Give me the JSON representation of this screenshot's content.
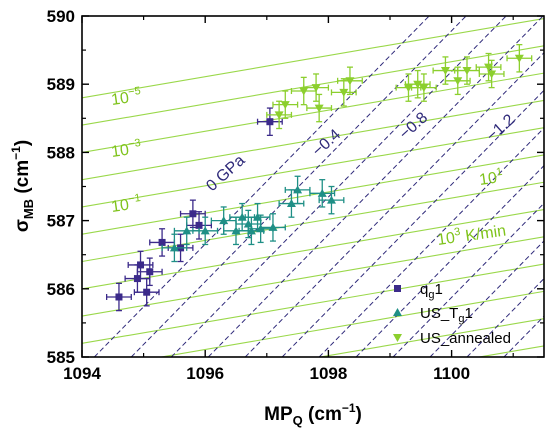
{
  "chart_data": {
    "type": "scatter",
    "xlabel_main": "MP",
    "xlabel_sub": "Q",
    "xlabel_unit_open": " (cm",
    "xlabel_unit_sup": "−1",
    "xlabel_unit_close": ")",
    "ylabel_main": "σ",
    "ylabel_sub": "MB",
    "ylabel_unit_open": " (cm",
    "ylabel_unit_sup": "−1",
    "ylabel_unit_close": ")",
    "xlim": [
      1094,
      1101.5
    ],
    "ylim": [
      585,
      590
    ],
    "x_ticks": [
      "1094",
      "1096",
      "1098",
      "1100"
    ],
    "y_ticks": [
      "585",
      "586",
      "587",
      "588",
      "589",
      "590"
    ],
    "colors": {
      "qg1": "#3b2a8a",
      "UST": "#1f8f86",
      "annealed": "#8ccf2e",
      "pressure_line": "#2f2a7a",
      "rate_line": "#9ad84a",
      "rate_label": "#7fc31c",
      "pressure_label": "#2f2a7a"
    },
    "pressure_lines": {
      "slope": 0.92,
      "anchors_x_at_585": [
        1094.2,
        1094.8,
        1095.45,
        1096.05,
        1096.65,
        1097.25,
        1097.85,
        1098.45,
        1099.05,
        1099.65,
        1100.25,
        1100.85
      ]
    },
    "rate_lines": {
      "slope": 0.155,
      "intercepts_y_at_1094": [
        583.6,
        584.0,
        584.4,
        584.8,
        585.2,
        585.6,
        586.0,
        586.4,
        586.8,
        587.2,
        587.6,
        588.0,
        588.4,
        588.8
      ]
    },
    "annotations": {
      "r1": {
        "base": "10",
        "exp": "−5"
      },
      "r2": {
        "base": "10",
        "exp": "−3"
      },
      "r3": {
        "base": "10",
        "exp": "−1"
      },
      "r4": {
        "base": "10",
        "exp": "1"
      },
      "r5": {
        "base": "10",
        "exp": "3",
        "suffix": " K/min"
      },
      "p1": "0 GPa",
      "p2": "−0.4",
      "p3": "−0.8",
      "p4": "−1.2"
    },
    "legend": {
      "qg1": {
        "base": "q",
        "sub": "g",
        "tail": "1"
      },
      "ust": {
        "base": "US_T",
        "sub": "g",
        "tail": "1"
      },
      "annealed": {
        "label": "US_annealed"
      }
    },
    "series": [
      {
        "key": "qg1",
        "marker": "square",
        "points": [
          {
            "x": 1094.6,
            "y": 585.88,
            "xe": 0.2,
            "ye": 0.2
          },
          {
            "x": 1094.9,
            "y": 586.15,
            "xe": 0.2,
            "ye": 0.2
          },
          {
            "x": 1094.95,
            "y": 586.35,
            "xe": 0.2,
            "ye": 0.2
          },
          {
            "x": 1095.05,
            "y": 585.95,
            "xe": 0.2,
            "ye": 0.2
          },
          {
            "x": 1095.1,
            "y": 586.25,
            "xe": 0.2,
            "ye": 0.2
          },
          {
            "x": 1095.3,
            "y": 586.68,
            "xe": 0.2,
            "ye": 0.2
          },
          {
            "x": 1095.6,
            "y": 586.6,
            "xe": 0.2,
            "ye": 0.2
          },
          {
            "x": 1095.8,
            "y": 587.1,
            "xe": 0.2,
            "ye": 0.2
          },
          {
            "x": 1095.9,
            "y": 586.93,
            "xe": 0.2,
            "ye": 0.2
          },
          {
            "x": 1097.05,
            "y": 588.45,
            "xe": 0.2,
            "ye": 0.2
          }
        ]
      },
      {
        "key": "UST",
        "marker": "triangle-up",
        "points": [
          {
            "x": 1095.5,
            "y": 586.6,
            "xe": 0.2,
            "ye": 0.2
          },
          {
            "x": 1095.7,
            "y": 586.85,
            "xe": 0.2,
            "ye": 0.2
          },
          {
            "x": 1096.0,
            "y": 586.85,
            "xe": 0.2,
            "ye": 0.2
          },
          {
            "x": 1096.3,
            "y": 587.0,
            "xe": 0.2,
            "ye": 0.2
          },
          {
            "x": 1096.5,
            "y": 586.85,
            "xe": 0.2,
            "ye": 0.2
          },
          {
            "x": 1096.6,
            "y": 587.05,
            "xe": 0.2,
            "ye": 0.2
          },
          {
            "x": 1096.7,
            "y": 586.95,
            "xe": 0.2,
            "ye": 0.2
          },
          {
            "x": 1096.75,
            "y": 586.85,
            "xe": 0.2,
            "ye": 0.2
          },
          {
            "x": 1096.85,
            "y": 587.05,
            "xe": 0.2,
            "ye": 0.2
          },
          {
            "x": 1096.9,
            "y": 586.88,
            "xe": 0.2,
            "ye": 0.2
          },
          {
            "x": 1097.1,
            "y": 586.9,
            "xe": 0.2,
            "ye": 0.2
          },
          {
            "x": 1097.4,
            "y": 587.25,
            "xe": 0.2,
            "ye": 0.2
          },
          {
            "x": 1097.5,
            "y": 587.45,
            "xe": 0.2,
            "ye": 0.2
          },
          {
            "x": 1097.9,
            "y": 587.4,
            "xe": 0.2,
            "ye": 0.2
          },
          {
            "x": 1098.05,
            "y": 587.3,
            "xe": 0.2,
            "ye": 0.2
          }
        ]
      },
      {
        "key": "annealed",
        "marker": "triangle-down",
        "points": [
          {
            "x": 1097.2,
            "y": 588.55,
            "xe": 0.2,
            "ye": 0.2
          },
          {
            "x": 1097.3,
            "y": 588.7,
            "xe": 0.2,
            "ye": 0.2
          },
          {
            "x": 1097.6,
            "y": 588.9,
            "xe": 0.2,
            "ye": 0.2
          },
          {
            "x": 1097.8,
            "y": 588.95,
            "xe": 0.2,
            "ye": 0.2
          },
          {
            "x": 1097.85,
            "y": 588.65,
            "xe": 0.2,
            "ye": 0.2
          },
          {
            "x": 1098.25,
            "y": 588.88,
            "xe": 0.2,
            "ye": 0.2
          },
          {
            "x": 1098.35,
            "y": 589.05,
            "xe": 0.2,
            "ye": 0.2
          },
          {
            "x": 1099.3,
            "y": 588.95,
            "xe": 0.2,
            "ye": 0.2
          },
          {
            "x": 1099.45,
            "y": 589.0,
            "xe": 0.2,
            "ye": 0.2
          },
          {
            "x": 1099.55,
            "y": 588.95,
            "xe": 0.2,
            "ye": 0.2
          },
          {
            "x": 1099.9,
            "y": 589.2,
            "xe": 0.2,
            "ye": 0.2
          },
          {
            "x": 1100.1,
            "y": 589.05,
            "xe": 0.2,
            "ye": 0.2
          },
          {
            "x": 1100.25,
            "y": 589.2,
            "xe": 0.2,
            "ye": 0.2
          },
          {
            "x": 1100.6,
            "y": 589.25,
            "xe": 0.2,
            "ye": 0.2
          },
          {
            "x": 1100.65,
            "y": 589.15,
            "xe": 0.2,
            "ye": 0.2
          },
          {
            "x": 1101.1,
            "y": 589.38,
            "xe": 0.2,
            "ye": 0.2
          }
        ]
      }
    ]
  }
}
